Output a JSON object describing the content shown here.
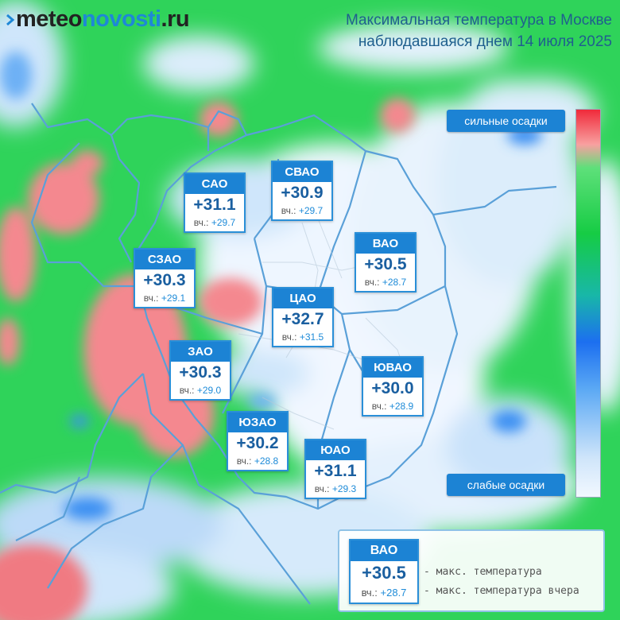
{
  "logo": {
    "part1": "meteo",
    "part2": "novosti",
    "part3": ".ru"
  },
  "title": {
    "line1": "Максимальная температура в Москве",
    "line2": "наблюдавшаяся днем 14 июля 2025"
  },
  "scale": {
    "high_label": "сильные осадки",
    "low_label": "слабые осадки"
  },
  "yesterday_label": "вч.:",
  "districts": [
    {
      "name": "САО",
      "temp": "+31.1",
      "yesterday": "+29.7"
    },
    {
      "name": "СВАО",
      "temp": "+30.9",
      "yesterday": "+29.7"
    },
    {
      "name": "ВАО",
      "temp": "+30.5",
      "yesterday": "+28.7"
    },
    {
      "name": "СЗАО",
      "temp": "+30.3",
      "yesterday": "+29.1"
    },
    {
      "name": "ЦАО",
      "temp": "+32.7",
      "yesterday": "+31.5"
    },
    {
      "name": "ЗАО",
      "temp": "+30.3",
      "yesterday": "+29.0"
    },
    {
      "name": "ЮВАО",
      "temp": "+30.0",
      "yesterday": "+28.9"
    },
    {
      "name": "ЮЗАО",
      "temp": "+30.2",
      "yesterday": "+28.8"
    },
    {
      "name": "ЮАО",
      "temp": "+31.1",
      "yesterday": "+29.3"
    }
  ],
  "legend": {
    "name": "ВАО",
    "temp": "+30.5",
    "yesterday": "+28.7",
    "max_temp_text": "- макс. температура",
    "max_temp_yesterday_text": "- макс. температура вчера"
  },
  "colors": {
    "heavy": "#f02a3a",
    "moderate": "#16cc44",
    "light_blue": "#1c6ff0",
    "faint": "#f2f8ff",
    "badge": "#1c83d4"
  }
}
